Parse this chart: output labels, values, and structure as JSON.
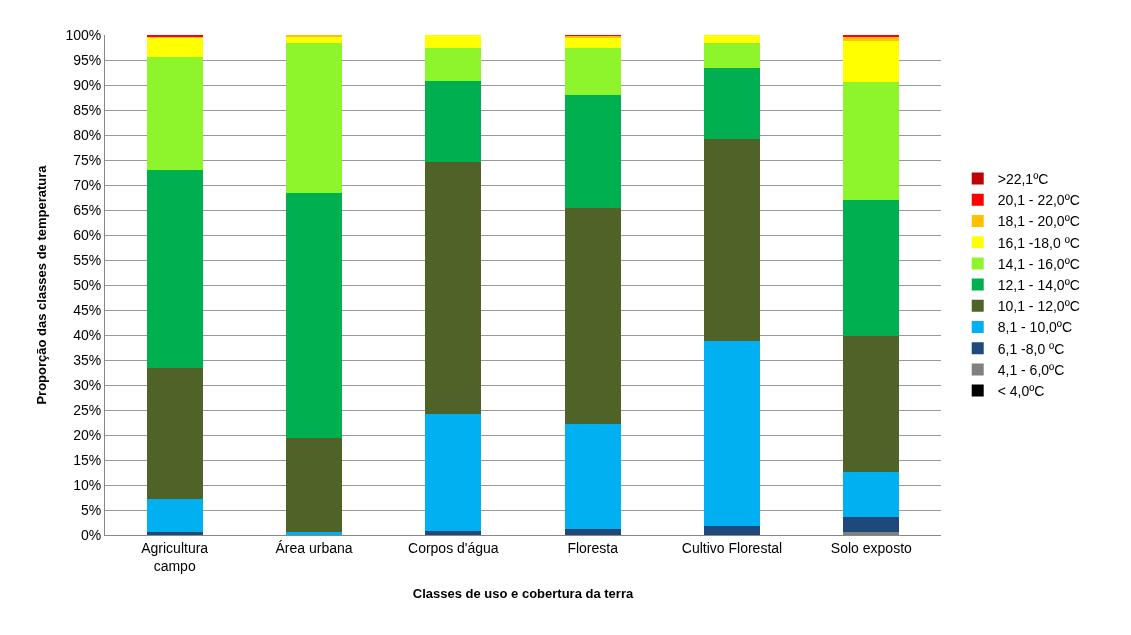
{
  "chart_data": {
    "type": "bar",
    "stacked": true,
    "xlabel": "Classes de uso e cobertura da terra",
    "ylabel": "Proporção das classes de temperatura",
    "categories": [
      "Agricultura\ncampo",
      "Área urbana",
      "Corpos d'água",
      "Floresta",
      "Cultivo Florestal",
      "Solo exposto"
    ],
    "series": [
      {
        "name": "< 4,0ºC",
        "color": "#000000",
        "values": [
          0,
          0,
          0,
          0,
          0,
          0
        ]
      },
      {
        "name": "4,1 - 6,0ºC",
        "color": "#808080",
        "values": [
          0,
          0,
          0,
          0,
          0,
          0.6
        ]
      },
      {
        "name": "6,1 -8,0 ºC",
        "color": "#1f497d",
        "values": [
          0.6,
          0,
          0.8,
          1.3,
          1.9,
          3.1
        ]
      },
      {
        "name": "8,1 - 10,0ºC",
        "color": "#00b0f0",
        "values": [
          6.7,
          0.7,
          23.5,
          21.0,
          36.9,
          9.0
        ]
      },
      {
        "name": "10,1 - 12,0ºC",
        "color": "#4f6228",
        "values": [
          26.2,
          18.8,
          50.4,
          43.2,
          40.5,
          27.1
        ]
      },
      {
        "name": "12,1 - 14,0ºC",
        "color": "#00b050",
        "values": [
          39.5,
          48.9,
          16.1,
          22.6,
          14.2,
          27.3
        ]
      },
      {
        "name": "14,1 - 16,0ºC",
        "color": "#8ef52c",
        "values": [
          22.7,
          30.1,
          6.7,
          9.4,
          5.0,
          23.5
        ]
      },
      {
        "name": "16,1 -18,0 ºC",
        "color": "#ffff00",
        "values": [
          3.7,
          1.2,
          2.5,
          2.0,
          1.5,
          8.3
        ]
      },
      {
        "name": "18,1 - 20,0ºC",
        "color": "#ffc000",
        "values": [
          0.2,
          0.3,
          0,
          0.3,
          0,
          0.8
        ]
      },
      {
        "name": "20,1 - 22,0ºC",
        "color": "#ff0000",
        "values": [
          0.4,
          0,
          0,
          0.2,
          0,
          0.3
        ]
      },
      {
        "name": ">22,1ºC",
        "color": "#c00000",
        "values": [
          0,
          0,
          0,
          0,
          0,
          0
        ]
      }
    ],
    "ylim": [
      0,
      100
    ],
    "yticks": [
      {
        "value": 0,
        "label": "0%"
      },
      {
        "value": 5,
        "label": "5%"
      },
      {
        "value": 10,
        "label": "10%"
      },
      {
        "value": 15,
        "label": "15%"
      },
      {
        "value": 20,
        "label": "20%"
      },
      {
        "value": 25,
        "label": "25%"
      },
      {
        "value": 30,
        "label": "30%"
      },
      {
        "value": 35,
        "label": "35%"
      },
      {
        "value": 40,
        "label": "40%"
      },
      {
        "value": 45,
        "label": "45%"
      },
      {
        "value": 50,
        "label": "50%"
      },
      {
        "value": 55,
        "label": "55%"
      },
      {
        "value": 60,
        "label": "60%"
      },
      {
        "value": 65,
        "label": "65%"
      },
      {
        "value": 70,
        "label": "70%"
      },
      {
        "value": 75,
        "label": "75%"
      },
      {
        "value": 80,
        "label": "80%"
      },
      {
        "value": 85,
        "label": "85%"
      },
      {
        "value": 90,
        "label": "90%"
      },
      {
        "value": 95,
        "label": "95%"
      },
      {
        "value": 100,
        "label": "100%"
      }
    ],
    "grid": "y",
    "legend": "right"
  }
}
